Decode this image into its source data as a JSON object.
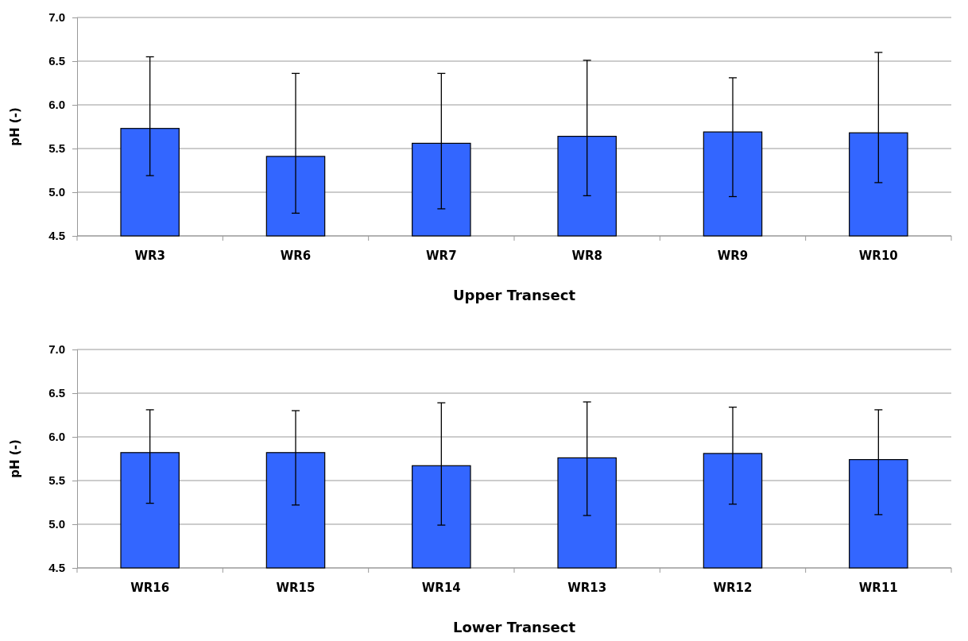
{
  "chart_data": [
    {
      "type": "bar",
      "xlabel": "Upper Transect",
      "ylabel": "pH (-)",
      "categories": [
        "WR3",
        "WR6",
        "WR7",
        "WR8",
        "WR9",
        "WR10"
      ],
      "values": [
        5.73,
        5.41,
        5.56,
        5.64,
        5.69,
        5.68
      ],
      "errors": [
        [
          5.19,
          6.55
        ],
        [
          4.76,
          6.36
        ],
        [
          4.81,
          6.36
        ],
        [
          4.96,
          6.51
        ],
        [
          4.95,
          6.31
        ],
        [
          5.11,
          6.6
        ]
      ],
      "color": "#3366ff",
      "ylim": [
        4.5,
        7.0
      ],
      "yticks": [
        {
          "value": 4.5,
          "label": "4.5"
        },
        {
          "value": 5.0,
          "label": "5.0"
        },
        {
          "value": 5.5,
          "label": "5.5"
        },
        {
          "value": 6.0,
          "label": "6.0"
        },
        {
          "value": 6.5,
          "label": "6.5"
        },
        {
          "value": 7.0,
          "label": "7.0"
        }
      ],
      "grid": "y"
    },
    {
      "type": "bar",
      "xlabel": "Lower Transect",
      "ylabel": "pH (-)",
      "categories": [
        "WR16",
        "WR15",
        "WR14",
        "WR13",
        "WR12",
        "WR11"
      ],
      "values": [
        5.82,
        5.82,
        5.67,
        5.76,
        5.81,
        5.74
      ],
      "errors": [
        [
          5.24,
          6.31
        ],
        [
          5.22,
          6.3
        ],
        [
          4.99,
          6.39
        ],
        [
          5.1,
          6.4
        ],
        [
          5.23,
          6.34
        ],
        [
          5.11,
          6.31
        ]
      ],
      "color": "#3366ff",
      "ylim": [
        4.5,
        7.0
      ],
      "yticks": [
        {
          "value": 4.5,
          "label": "4.5"
        },
        {
          "value": 5.0,
          "label": "5.0"
        },
        {
          "value": 5.5,
          "label": "5.5"
        },
        {
          "value": 6.0,
          "label": "6.0"
        },
        {
          "value": 6.5,
          "label": "6.5"
        },
        {
          "value": 7.0,
          "label": "7.0"
        }
      ],
      "grid": "y"
    }
  ]
}
